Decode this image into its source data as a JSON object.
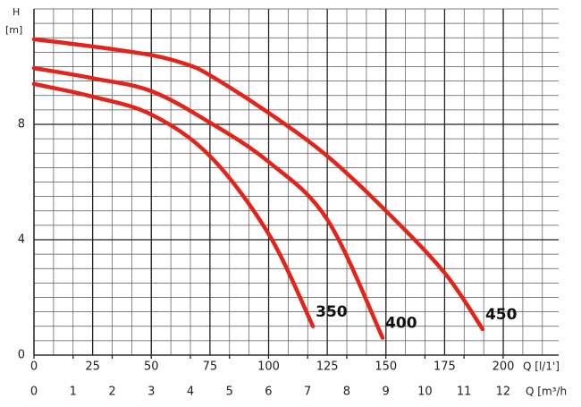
{
  "chart_data": {
    "type": "line",
    "y_label_symbol": "H",
    "y_label_unit": "[m]",
    "x_label": "Q [l/1']",
    "x2_label": "Q [m³/h",
    "xlim": [
      0,
      223.6
    ],
    "xticks": [
      0,
      25,
      50,
      75,
      100,
      125,
      150,
      175,
      200
    ],
    "x2lim": [
      0,
      13.42
    ],
    "x2ticks": [
      0,
      1,
      2,
      3,
      4,
      5,
      6,
      7,
      8,
      9,
      10,
      11,
      12
    ],
    "ylim": [
      0,
      12
    ],
    "yticks": [
      0,
      4,
      8
    ],
    "grid": true,
    "series": [
      {
        "name": "350",
        "color": "#e3241b",
        "x": [
          0,
          25,
          50,
          75,
          100,
          118.9
        ],
        "values": [
          9.4,
          8.96,
          8.34,
          6.9,
          4.2,
          1.0
        ]
      },
      {
        "name": "400",
        "color": "#e3241b",
        "x": [
          0,
          25,
          50,
          75,
          100,
          125,
          148.6
        ],
        "values": [
          9.95,
          9.6,
          9.15,
          8.06,
          6.7,
          4.7,
          0.6
        ]
      },
      {
        "name": "450",
        "color": "#e3241b",
        "x": [
          0,
          25,
          50,
          65,
          75,
          100,
          125,
          150,
          175,
          191.2
        ],
        "values": [
          10.95,
          10.7,
          10.4,
          10.08,
          9.7,
          8.4,
          6.9,
          5.0,
          2.85,
          0.9
        ]
      }
    ]
  }
}
